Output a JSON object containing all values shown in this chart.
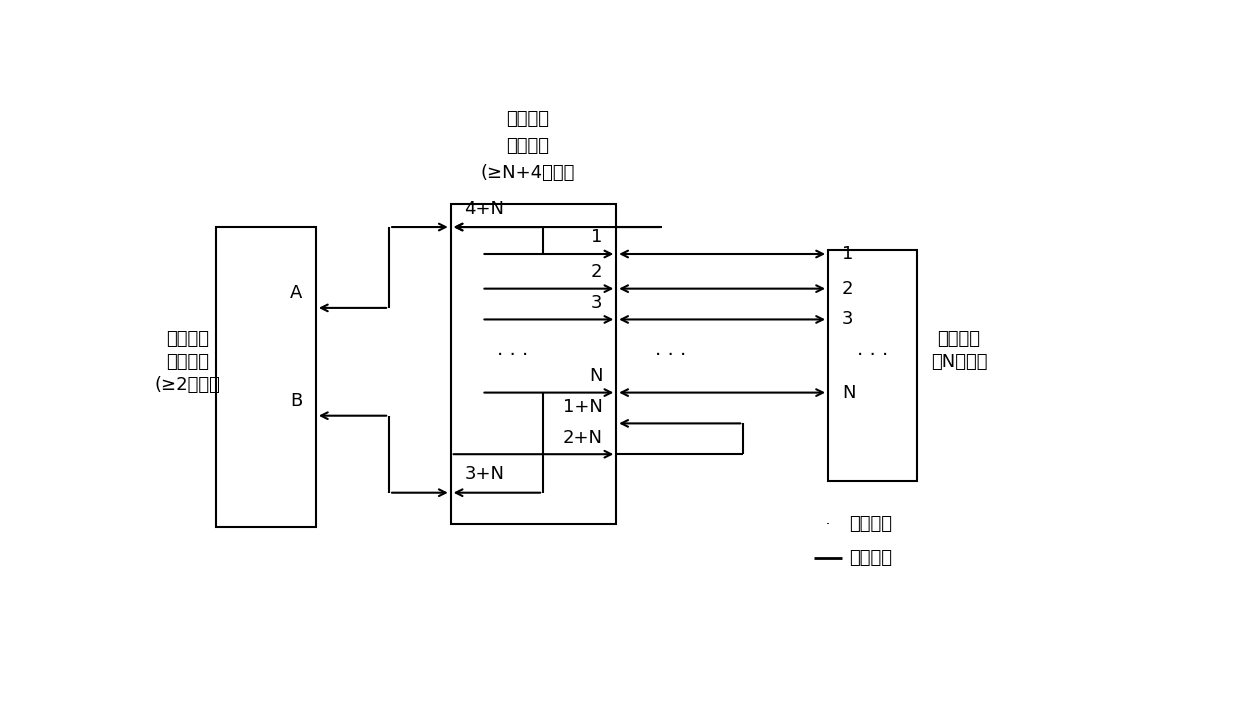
{
  "title_line1": "网络通道",
  "title_line2": "构建模块",
  "title_line3": "(≥N+4端口）",
  "left_label1": "网络终端",
  "left_label2": "仿真模块",
  "left_label3": "(≥2端口）",
  "right_label1": "被测产品",
  "right_label2": "（N端口）",
  "legend_port_text": "网络端口",
  "legend_channel_text": "网络通道",
  "bg_color": "#ffffff",
  "lw": 1.5,
  "port_hw": 0.013,
  "fs": 13,
  "fs_small": 12
}
